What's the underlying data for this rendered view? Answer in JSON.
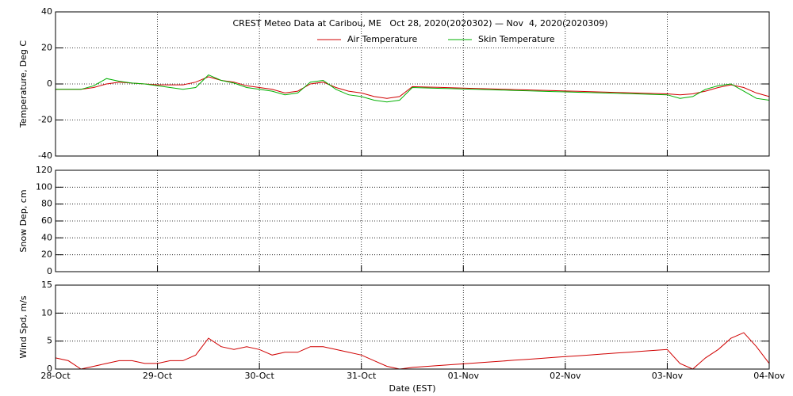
{
  "chart_data": [
    {
      "type": "line",
      "title": "CREST Meteo Data at Caribou, ME   Oct 28, 2020(2020302) — Nov  4, 2020(2020309)",
      "y_label": "Temperature, Deg C",
      "ylim": [
        -40,
        40
      ],
      "yticks": [
        -40,
        -20,
        0,
        20,
        40
      ],
      "grid": true,
      "series": [
        {
          "name": "Air Temperature",
          "color": "#d00000",
          "values": [
            -3,
            -3,
            -3,
            -2,
            0,
            1,
            0.5,
            0,
            -0.5,
            -0.5,
            -0.5,
            1,
            4,
            2,
            1,
            -1,
            -2,
            -3,
            -5,
            -4,
            0,
            1,
            -2,
            -4,
            -5,
            -7,
            -8,
            -7,
            -1.5,
            -1.7,
            -1.9,
            -2.1,
            -2.3,
            -2.5,
            -2.7,
            -2.9,
            -3.1,
            -3.3,
            -3.5,
            -3.7,
            -3.9,
            -4.1,
            -4.3,
            -4.5,
            -4.7,
            -4.9,
            -5.1,
            -5.3,
            -5.5,
            -6,
            -5.5,
            -4,
            -2,
            -0.5,
            -2,
            -5,
            -7
          ]
        },
        {
          "name": "Skin Temperature",
          "color": "#00b000",
          "values": [
            -3,
            -3,
            -3,
            -1,
            3,
            1.5,
            0.5,
            0,
            -1,
            -2,
            -3,
            -2,
            5,
            2,
            0.5,
            -2,
            -3,
            -4,
            -6,
            -5,
            1,
            2,
            -3,
            -6,
            -7,
            -9,
            -10,
            -9,
            -2,
            -2.2,
            -2.4,
            -2.6,
            -2.8,
            -3,
            -3.2,
            -3.4,
            -3.6,
            -3.8,
            -4,
            -4.2,
            -4.4,
            -4.6,
            -4.8,
            -5,
            -5.2,
            -5.4,
            -5.6,
            -5.8,
            -6,
            -8,
            -7,
            -3,
            -1,
            0,
            -4,
            -8,
            -9
          ]
        }
      ]
    },
    {
      "type": "line",
      "y_label": "Snow Dep, cm",
      "ylim": [
        0,
        120
      ],
      "yticks": [
        0,
        20,
        40,
        60,
        80,
        100,
        120
      ],
      "grid": true,
      "series": [
        {
          "color": "#0000c0",
          "values": [
            0,
            0,
            0,
            0,
            0,
            0,
            0,
            0,
            0,
            0,
            0,
            0,
            0,
            0,
            0,
            0,
            0,
            0,
            0,
            0,
            0,
            0,
            0,
            0,
            0,
            0,
            0,
            0,
            0,
            0,
            0,
            0,
            0,
            0,
            0,
            0,
            0,
            0,
            0,
            0,
            0,
            0,
            0,
            0,
            0,
            0,
            0,
            0,
            0,
            0,
            0,
            0,
            0,
            0,
            0,
            0,
            0
          ]
        }
      ]
    },
    {
      "type": "line",
      "y_label": "Wind Spd, m/s",
      "x_label": "Date (EST)",
      "ylim": [
        0,
        15
      ],
      "yticks": [
        0,
        5,
        10,
        15
      ],
      "grid": true,
      "categories": [
        "28-Oct",
        null,
        null,
        null,
        null,
        null,
        null,
        null,
        "29-Oct",
        null,
        null,
        null,
        null,
        null,
        null,
        null,
        "30-Oct",
        null,
        null,
        null,
        null,
        null,
        null,
        null,
        "31-Oct",
        null,
        null,
        null,
        null,
        null,
        null,
        null,
        "01-Nov",
        null,
        null,
        null,
        null,
        null,
        null,
        null,
        "02-Nov",
        null,
        null,
        null,
        null,
        null,
        null,
        null,
        "03-Nov",
        null,
        null,
        null,
        null,
        null,
        null,
        null,
        "04-Nov"
      ],
      "series": [
        {
          "color": "#d00000",
          "values": [
            2,
            1.5,
            0,
            0.5,
            1,
            1.5,
            1.5,
            1,
            1,
            1.5,
            1.5,
            2.5,
            5.5,
            4,
            3.5,
            4,
            3.5,
            2.5,
            3,
            3,
            4,
            4,
            3.5,
            3,
            2.5,
            1.5,
            0.5,
            0,
            0.3,
            0.46,
            0.62,
            0.78,
            0.94,
            1.1,
            1.26,
            1.42,
            1.58,
            1.74,
            1.9,
            2.06,
            2.22,
            2.38,
            2.54,
            2.7,
            2.86,
            3.02,
            3.18,
            3.34,
            3.5,
            1,
            0,
            2,
            3.5,
            5.5,
            6.5,
            4,
            1
          ]
        }
      ]
    }
  ]
}
